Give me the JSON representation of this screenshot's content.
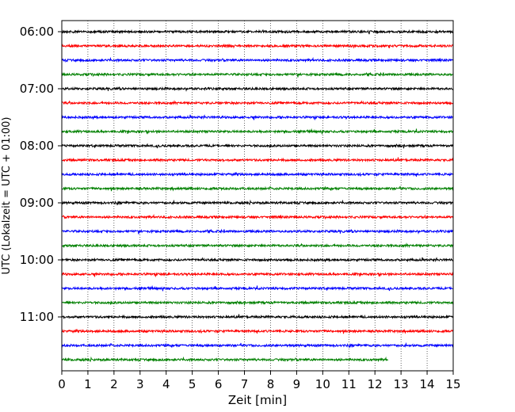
{
  "chart_data": {
    "type": "line",
    "title": "",
    "xlabel": "Zeit  [min]",
    "ylabel": "UTC (Lokalzeit = UTC + 01:00)",
    "xlim": [
      0,
      15
    ],
    "x_ticks": [
      "0",
      "1",
      "2",
      "3",
      "4",
      "5",
      "6",
      "7",
      "8",
      "9",
      "10",
      "11",
      "12",
      "13",
      "14",
      "15"
    ],
    "y_ticks": [
      "06:00",
      "07:00",
      "08:00",
      "09:00",
      "10:00",
      "11:00"
    ],
    "grid": "vertical dotted lines at each minute",
    "trace_colors": [
      "#000000",
      "#ff0000",
      "#0000ff",
      "#008000"
    ],
    "traces": [
      {
        "start": "06:00",
        "end_min": 15
      },
      {
        "start": "06:15",
        "end_min": 15
      },
      {
        "start": "06:30",
        "end_min": 15
      },
      {
        "start": "06:45",
        "end_min": 15
      },
      {
        "start": "07:00",
        "end_min": 15
      },
      {
        "start": "07:15",
        "end_min": 15
      },
      {
        "start": "07:30",
        "end_min": 15
      },
      {
        "start": "07:45",
        "end_min": 15
      },
      {
        "start": "08:00",
        "end_min": 15
      },
      {
        "start": "08:15",
        "end_min": 15
      },
      {
        "start": "08:30",
        "end_min": 15
      },
      {
        "start": "08:45",
        "end_min": 15
      },
      {
        "start": "09:00",
        "end_min": 15
      },
      {
        "start": "09:15",
        "end_min": 15
      },
      {
        "start": "09:30",
        "end_min": 15
      },
      {
        "start": "09:45",
        "end_min": 15
      },
      {
        "start": "10:00",
        "end_min": 15
      },
      {
        "start": "10:15",
        "end_min": 15
      },
      {
        "start": "10:30",
        "end_min": 15
      },
      {
        "start": "10:45",
        "end_min": 15
      },
      {
        "start": "11:00",
        "end_min": 15
      },
      {
        "start": "11:15",
        "end_min": 15
      },
      {
        "start": "11:30",
        "end_min": 15
      },
      {
        "start": "11:45",
        "end_min": 12.5
      }
    ]
  }
}
